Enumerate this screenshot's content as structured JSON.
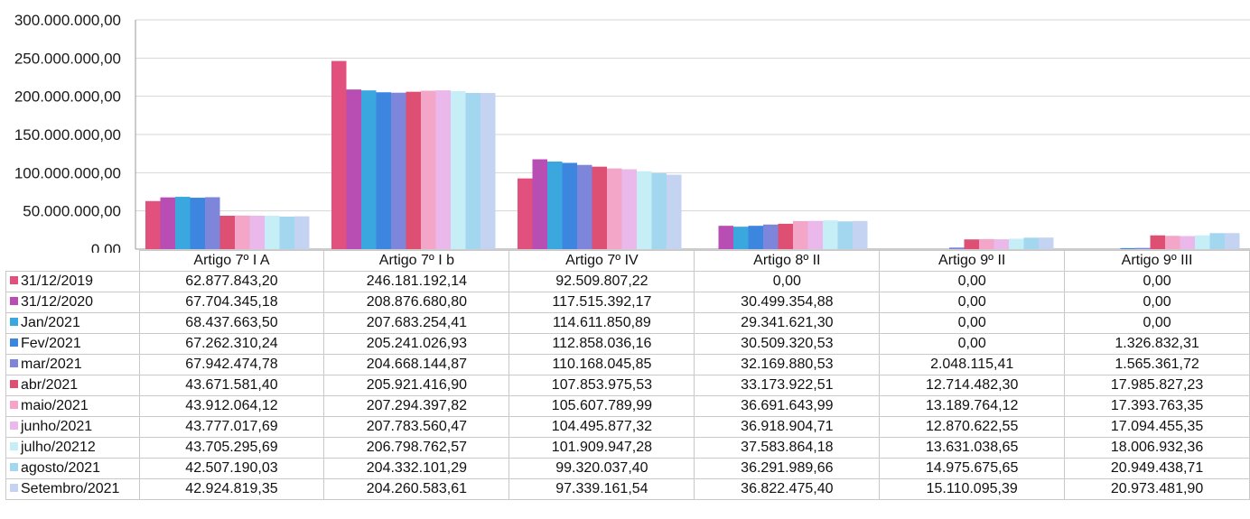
{
  "chart_data": {
    "type": "bar",
    "categories": [
      "Artigo 7º I A",
      "Artigo 7º I b",
      "Artigo 7º IV",
      "Artigo 8º II",
      "Artigo 9º II",
      "Artigo 9º III"
    ],
    "ylim": [
      0,
      300000000
    ],
    "yticks": [
      0,
      50000000,
      100000000,
      150000000,
      200000000,
      250000000,
      300000000
    ],
    "ytick_labels": [
      "0,00",
      "50.000.000,00",
      "100.000.000,00",
      "150.000.000,00",
      "200.000.000,00",
      "250.000.000,00",
      "300.000.000,00"
    ],
    "grid": true,
    "legend_placement": "table-left",
    "series": [
      {
        "name": "31/12/2019",
        "color": "#e2507d",
        "values": [
          62877843.2,
          246181192.14,
          92509807.22,
          0,
          0,
          0
        ],
        "labels": [
          "62.877.843,20",
          "246.181.192,14",
          "92.509.807,22",
          "0,00",
          "0,00",
          "0,00"
        ]
      },
      {
        "name": "31/12/2020",
        "color": "#b84db3",
        "values": [
          67704345.18,
          208876680.8,
          117515392.17,
          30499354.88,
          0,
          0
        ],
        "labels": [
          "67.704.345,18",
          "208.876.680,80",
          "117.515.392,17",
          "30.499.354,88",
          "0,00",
          "0,00"
        ]
      },
      {
        "name": "Jan/2021",
        "color": "#3aa7df",
        "values": [
          68437663.5,
          207683254.41,
          114611850.89,
          29341621.3,
          0,
          0
        ],
        "labels": [
          "68.437.663,50",
          "207.683.254,41",
          "114.611.850,89",
          "29.341.621,30",
          "0,00",
          "0,00"
        ]
      },
      {
        "name": "Fev/2021",
        "color": "#3d86e0",
        "values": [
          67262310.24,
          205241026.93,
          112858036.16,
          30509320.53,
          0,
          1326832.31
        ],
        "labels": [
          "67.262.310,24",
          "205.241.026,93",
          "112.858.036,16",
          "30.509.320,53",
          "0,00",
          "1.326.832,31"
        ]
      },
      {
        "name": "mar/2021",
        "color": "#7d86db",
        "values": [
          67942474.78,
          204668144.87,
          110168045.85,
          32169880.53,
          2048115.41,
          1565361.72
        ],
        "labels": [
          "67.942.474,78",
          "204.668.144,87",
          "110.168.045,85",
          "32.169.880,53",
          "2.048.115,41",
          "1.565.361,72"
        ]
      },
      {
        "name": "abr/2021",
        "color": "#dd4f73",
        "values": [
          43671581.4,
          205921416.9,
          107853975.53,
          33173922.51,
          12714482.3,
          17985827.23
        ],
        "labels": [
          "43.671.581,40",
          "205.921.416,90",
          "107.853.975,53",
          "33.173.922,51",
          "12.714.482,30",
          "17.985.827,23"
        ]
      },
      {
        "name": "maio/2021",
        "color": "#f4a6c8",
        "values": [
          43912064.12,
          207294397.82,
          105607789.99,
          36691643.99,
          13189764.12,
          17393763.35
        ],
        "labels": [
          "43.912.064,12",
          "207.294.397,82",
          "105.607.789,99",
          "36.691.643,99",
          "13.189.764,12",
          "17.393.763,35"
        ]
      },
      {
        "name": "junho/2021",
        "color": "#eab8ea",
        "values": [
          43777017.69,
          207783560.47,
          104495877.32,
          36918904.71,
          12870622.55,
          17094455.35
        ],
        "labels": [
          "43.777.017,69",
          "207.783.560,47",
          "104.495.877,32",
          "36.918.904,71",
          "12.870.622,55",
          "17.094.455,35"
        ]
      },
      {
        "name": "julho/20212",
        "color": "#c5eef6",
        "values": [
          43705295.69,
          206798762.57,
          101909947.28,
          37583864.18,
          13631038.65,
          18006932.36
        ],
        "labels": [
          "43.705.295,69",
          "206.798.762,57",
          "101.909.947,28",
          "37.583.864,18",
          "13.631.038,65",
          "18.006.932,36"
        ]
      },
      {
        "name": "agosto/2021",
        "color": "#a3d7ef",
        "values": [
          42507190.03,
          204332101.29,
          99320037.4,
          36291989.66,
          14975675.65,
          20949438.71
        ],
        "labels": [
          "42.507.190,03",
          "204.332.101,29",
          "99.320.037,40",
          "36.291.989,66",
          "14.975.675,65",
          "20.949.438,71"
        ]
      },
      {
        "name": "Setembro/2021",
        "color": "#c3d3f1",
        "values": [
          42924819.35,
          204260583.61,
          97339161.54,
          36822475.4,
          15110095.39,
          20973481.9
        ],
        "labels": [
          "42.924.819,35",
          "204.260.583,61",
          "97.339.161,54",
          "36.822.475,40",
          "15.110.095,39",
          "20.973.481,90"
        ]
      }
    ]
  }
}
